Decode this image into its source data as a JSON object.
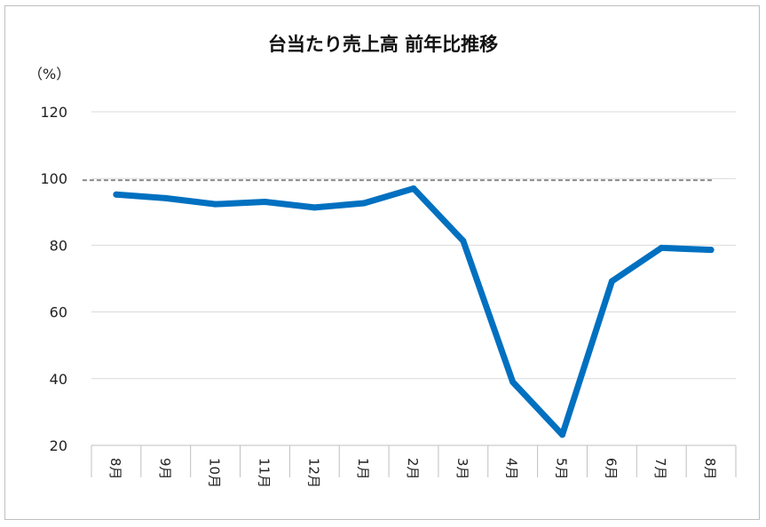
{
  "chart_data": {
    "type": "line",
    "title": "台当たり売上高 前年比推移",
    "ylabel": "（%）",
    "ylim": [
      20,
      120
    ],
    "yticks": [
      20,
      40,
      60,
      80,
      100,
      120
    ],
    "categories": [
      "8月",
      "9月",
      "10月",
      "11月",
      "12月",
      "1月",
      "2月",
      "3月",
      "4月",
      "5月",
      "6月",
      "7月",
      "8月"
    ],
    "series": [
      {
        "values": [
          95.2,
          94.1,
          92.3,
          93.0,
          91.3,
          92.6,
          97.0,
          81.3,
          39.0,
          23.2,
          69.2,
          79.2,
          78.6
        ],
        "color": "#0070c0"
      }
    ],
    "reference_line": {
      "value": 99.5,
      "style": "dashed",
      "color": "#8c8c8c"
    },
    "grid": true,
    "legend": "none"
  }
}
